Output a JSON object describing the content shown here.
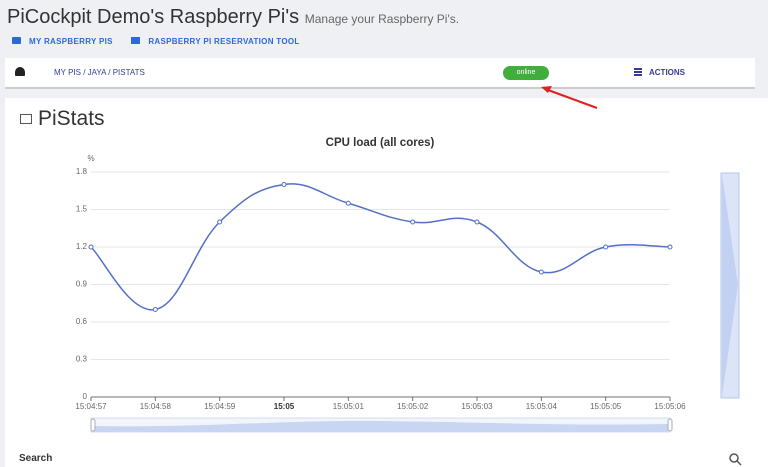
{
  "header": {
    "title": "PiCockpit Demo's Raspberry Pi's",
    "subtitle": "Manage your Raspberry Pi's."
  },
  "nav": {
    "links": [
      "MY RASPBERRY PIS",
      "RASPBERRY PI RESERVATION TOOL"
    ]
  },
  "toolbar": {
    "breadcrumb": "MY PIS / JAYA / PISTATS",
    "status": "online",
    "actions": "ACTIONS"
  },
  "page": {
    "heading": "PiStats"
  },
  "search": {
    "label": "Search"
  },
  "chart_data": {
    "type": "line",
    "title": "CPU load (all cores)",
    "y_label": "%",
    "categories": [
      "15:04:57",
      "15:04:58",
      "15:04:59",
      "15:05",
      "15:05:01",
      "15:05:02",
      "15:05:03",
      "15:05:04",
      "15:05:05",
      "15:05:06"
    ],
    "series": [
      {
        "name": "CPU load",
        "color": "#5470c6",
        "values": [
          1.2,
          0.7,
          1.4,
          1.7,
          1.55,
          1.4,
          1.4,
          1.0,
          1.2,
          1.2
        ]
      }
    ],
    "ylim": [
      0,
      1.8
    ],
    "yticks": [
      0,
      0.3,
      0.6,
      0.9,
      1.2,
      1.5,
      1.8
    ],
    "grid": true
  }
}
